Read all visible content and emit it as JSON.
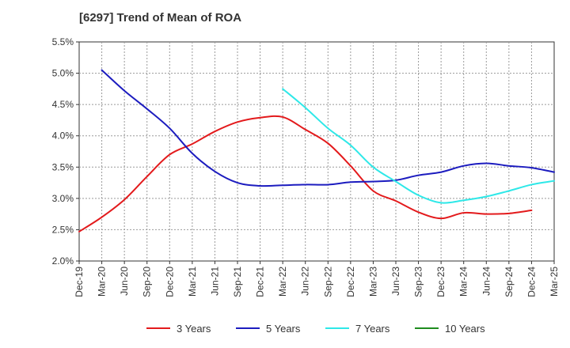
{
  "chart_data": {
    "type": "line",
    "title": "[6297]  Trend of Mean of ROA",
    "xlabel": "",
    "ylabel": "",
    "x_ticks": [
      "Dec-19",
      "Mar-20",
      "Jun-20",
      "Sep-20",
      "Dec-20",
      "Mar-21",
      "Jun-21",
      "Sep-21",
      "Dec-21",
      "Mar-22",
      "Jun-22",
      "Sep-22",
      "Dec-22",
      "Mar-23",
      "Jun-23",
      "Sep-23",
      "Dec-23",
      "Mar-24",
      "Jun-24",
      "Sep-24",
      "Dec-24",
      "Mar-25"
    ],
    "y_ticks": [
      "2.0%",
      "2.5%",
      "3.0%",
      "3.5%",
      "4.0%",
      "4.5%",
      "5.0%",
      "5.5%"
    ],
    "ylim": [
      2.0,
      5.5
    ],
    "grid": true,
    "legend_position": "bottom",
    "series": [
      {
        "name": "3 Years",
        "color": "#e31a1c",
        "start_index": 0,
        "values": [
          2.47,
          2.7,
          2.98,
          3.35,
          3.7,
          3.87,
          4.07,
          4.22,
          4.29,
          4.3,
          4.1,
          3.88,
          3.52,
          3.12,
          2.96,
          2.78,
          2.68,
          2.77,
          2.75,
          2.76,
          2.81
        ]
      },
      {
        "name": "5 Years",
        "color": "#1c1cbf",
        "start_index": 1,
        "values": [
          5.05,
          4.72,
          4.43,
          4.12,
          3.72,
          3.43,
          3.25,
          3.2,
          3.21,
          3.22,
          3.22,
          3.26,
          3.27,
          3.29,
          3.37,
          3.42,
          3.52,
          3.56,
          3.52,
          3.49,
          3.42
        ]
      },
      {
        "name": "7 Years",
        "color": "#2ee8e8",
        "start_index": 9,
        "values": [
          4.75,
          4.45,
          4.12,
          3.85,
          3.5,
          3.27,
          3.05,
          2.93,
          2.97,
          3.03,
          3.12,
          3.22,
          3.28
        ]
      },
      {
        "name": "10 Years",
        "color": "#1e8c1e",
        "start_index": 0,
        "values": []
      }
    ]
  }
}
